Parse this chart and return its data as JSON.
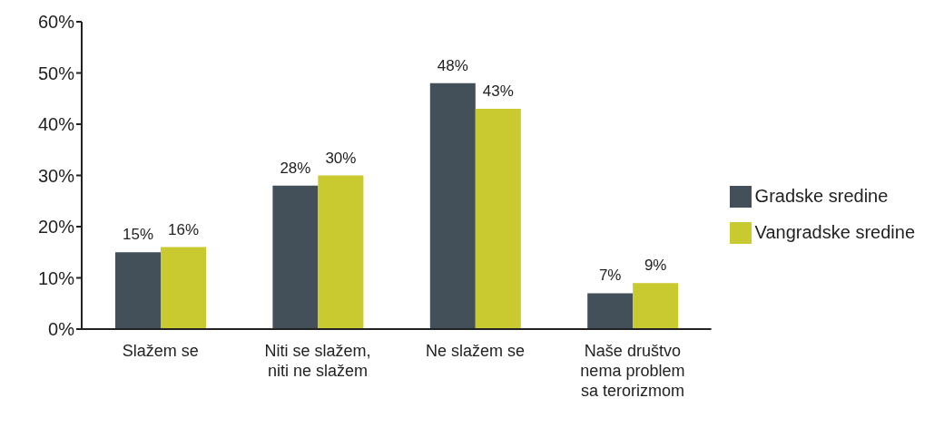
{
  "chart_data": {
    "type": "bar",
    "categories": [
      "Slažem se",
      "Niti se slažem, niti ne slažem",
      "Ne slažem se",
      "Naše društvo nema problem sa terorizmom"
    ],
    "series": [
      {
        "name": "Gradske sredine",
        "color": "#434f59",
        "values": [
          15,
          28,
          48,
          7
        ],
        "value_labels": [
          "15%",
          "28%",
          "48%",
          "7%"
        ]
      },
      {
        "name": "Vangradske sredine",
        "color": "#c8ca2f",
        "values": [
          16,
          30,
          43,
          9
        ],
        "value_labels": [
          "16%",
          "30%",
          "43%",
          "9%"
        ]
      }
    ],
    "ylim": [
      0,
      60
    ],
    "yticks": [
      {
        "value": 0,
        "label": "0%"
      },
      {
        "value": 10,
        "label": "10%"
      },
      {
        "value": 20,
        "label": "20%"
      },
      {
        "value": 30,
        "label": "30%"
      },
      {
        "value": 40,
        "label": "40%"
      },
      {
        "value": 50,
        "label": "50%"
      },
      {
        "value": 60,
        "label": "60%"
      }
    ],
    "grid": false,
    "legend": "right"
  }
}
